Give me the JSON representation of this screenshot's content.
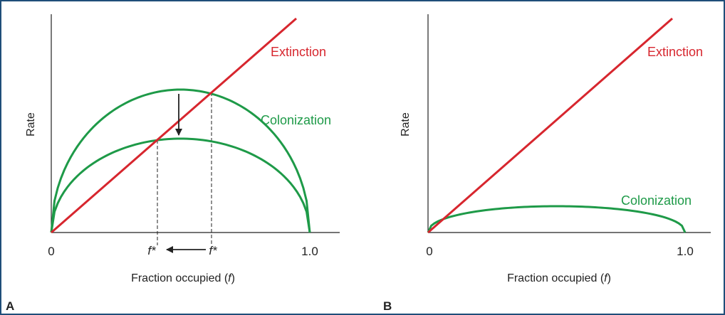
{
  "colors": {
    "extinction": "#d7262e",
    "colonization": "#1e9a48",
    "axis": "#222222",
    "text": "#222222",
    "frame": "#1f4e79"
  },
  "panel_a": {
    "panel_label": "A",
    "ylabel": "Rate",
    "xlabel_text": "Fraction occupied (",
    "xlabel_var": "f",
    "xlabel_close": ")",
    "x_start": "0",
    "x_end": "1.0",
    "extinction_label": "Extinction",
    "colonization_label": "Colonization",
    "fstar_new": "f*",
    "fstar_old": "f*"
  },
  "panel_b": {
    "panel_label": "B",
    "ylabel": "Rate",
    "xlabel_text": "Fraction occupied (",
    "xlabel_var": "f",
    "xlabel_close": ")",
    "x_start": "0",
    "x_end": "1.0",
    "extinction_label": "Extinction",
    "colonization_label": "Colonization"
  },
  "icons": {
    "down_arrow": "down-arrow-icon",
    "left_arrow": "left-arrow-icon"
  }
}
